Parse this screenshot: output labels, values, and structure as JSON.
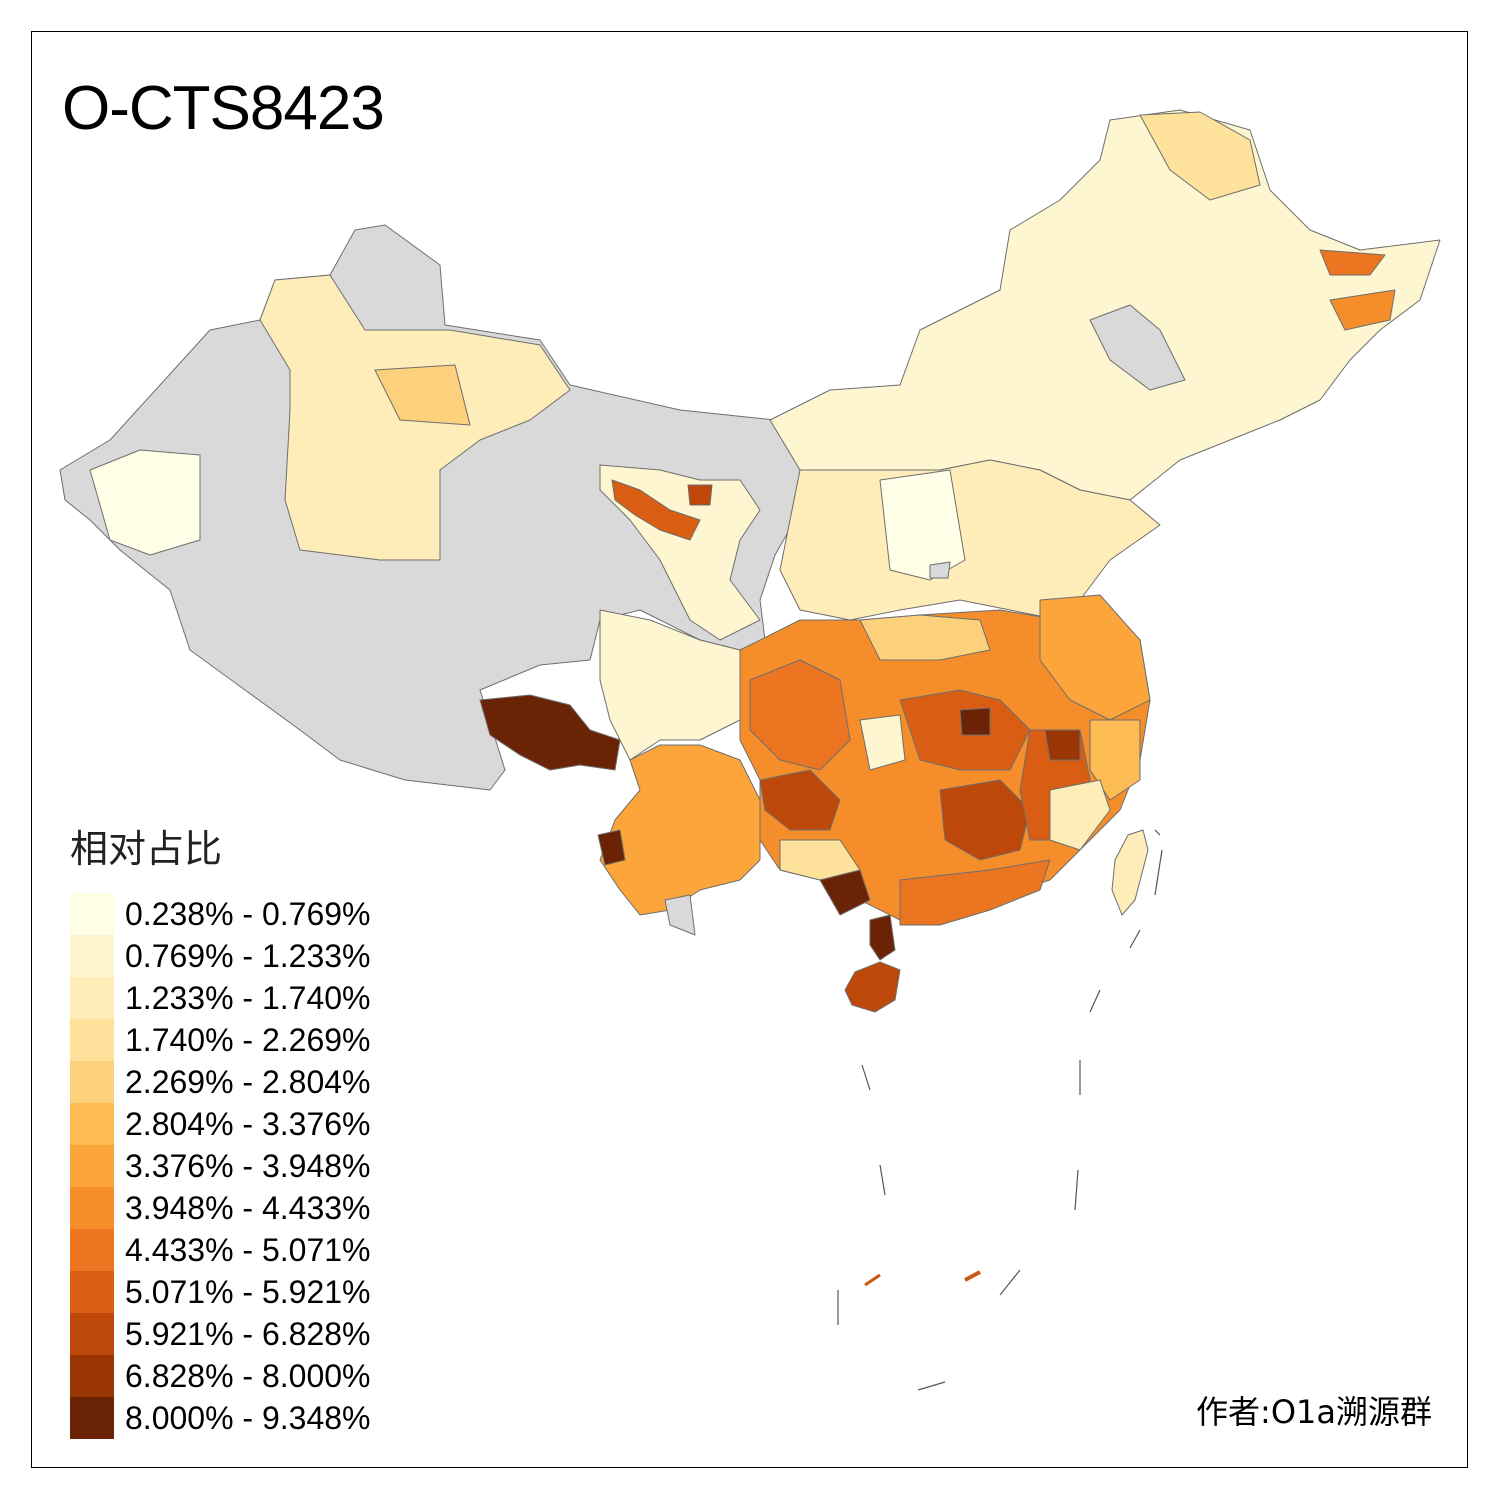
{
  "title": "O-CTS8423",
  "legend": {
    "title": "相对占比",
    "classes": [
      {
        "label": "0.238% - 0.769%",
        "color": "#FFFEE6"
      },
      {
        "label": "0.769% - 1.233%",
        "color": "#FEF6D0"
      },
      {
        "label": "1.233% - 1.740%",
        "color": "#FEEDB8"
      },
      {
        "label": "1.740% - 2.269%",
        "color": "#FEE29C"
      },
      {
        "label": "2.269% - 2.804%",
        "color": "#FDD17C"
      },
      {
        "label": "2.804% - 3.376%",
        "color": "#FDBB54"
      },
      {
        "label": "3.376% - 3.948%",
        "color": "#FBA53A"
      },
      {
        "label": "3.948% - 4.433%",
        "color": "#F58D2B"
      },
      {
        "label": "4.433% - 5.071%",
        "color": "#EB7520"
      },
      {
        "label": "5.071% - 5.921%",
        "color": "#D95D12"
      },
      {
        "label": "5.921% - 6.828%",
        "color": "#BE480A"
      },
      {
        "label": "6.828% - 8.000%",
        "color": "#9A3506"
      },
      {
        "label": "8.000% - 9.348%",
        "color": "#6B2306"
      }
    ]
  },
  "no_data_color": "#D9D9D9",
  "credit": "作者:O1a溯源群"
}
